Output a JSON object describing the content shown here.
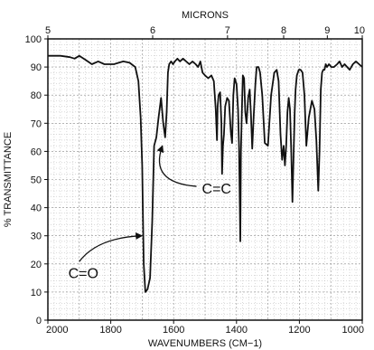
{
  "chart_data": {
    "type": "line",
    "title": "",
    "xlabel": "WAVENUMBERS (CM−1)",
    "ylabel": "% TRANSMITTANCE",
    "top_axis_label": "MICRONS",
    "xlim": [
      2000,
      1000
    ],
    "ylim": [
      0,
      100
    ],
    "grid": true,
    "x_ticks": [
      {
        "value": 2000,
        "label": "2000"
      },
      {
        "value": 1800,
        "label": "1800"
      },
      {
        "value": 1600,
        "label": "1600"
      },
      {
        "value": 1400,
        "label": "1400"
      },
      {
        "value": 1200,
        "label": "1200"
      },
      {
        "value": 1000,
        "label": "1000"
      }
    ],
    "y_ticks": [
      {
        "value": 0,
        "label": "0"
      },
      {
        "value": 10,
        "label": "10"
      },
      {
        "value": 20,
        "label": "20"
      },
      {
        "value": 30,
        "label": "30"
      },
      {
        "value": 40,
        "label": "40"
      },
      {
        "value": 50,
        "label": "50"
      },
      {
        "value": 60,
        "label": "60"
      },
      {
        "value": 70,
        "label": "70"
      },
      {
        "value": 80,
        "label": "80"
      },
      {
        "value": 90,
        "label": "90"
      },
      {
        "value": 100,
        "label": "100"
      }
    ],
    "micron_ticks": [
      {
        "value": 5,
        "label": "5"
      },
      {
        "value": 6,
        "label": "6"
      },
      {
        "value": 7,
        "label": "7"
      },
      {
        "value": 8,
        "label": "8"
      },
      {
        "value": 9,
        "label": "9"
      },
      {
        "value": 10,
        "label": "10"
      }
    ],
    "series": [
      {
        "x": [
          2000,
          1960,
          1930,
          1915,
          1900,
          1880,
          1860,
          1840,
          1820,
          1790,
          1760,
          1740,
          1722,
          1712,
          1705,
          1700,
          1698,
          1695,
          1690,
          1683,
          1675,
          1668,
          1662,
          1655,
          1648,
          1640,
          1633,
          1627,
          1622,
          1618,
          1614,
          1608,
          1602,
          1596,
          1588,
          1580,
          1570,
          1560,
          1550,
          1540,
          1530,
          1522,
          1515,
          1508,
          1500,
          1490,
          1480,
          1472,
          1466,
          1462,
          1460,
          1457,
          1452,
          1448,
          1446,
          1443,
          1440,
          1436,
          1430,
          1424,
          1418,
          1414,
          1410,
          1406,
          1400,
          1395,
          1392,
          1388,
          1386,
          1383,
          1380,
          1376,
          1372,
          1368,
          1363,
          1358,
          1354,
          1350,
          1345,
          1340,
          1336,
          1330,
          1325,
          1318,
          1310,
          1300,
          1290,
          1280,
          1272,
          1266,
          1260,
          1255,
          1250,
          1246,
          1242,
          1238,
          1234,
          1230,
          1226,
          1222,
          1218,
          1215,
          1212,
          1208,
          1202,
          1196,
          1190,
          1184,
          1178,
          1170,
          1160,
          1152,
          1146,
          1140,
          1136,
          1132,
          1128,
          1124,
          1120,
          1116,
          1112,
          1106,
          1098,
          1090,
          1080,
          1072,
          1064,
          1056,
          1048,
          1040,
          1030,
          1020,
          1010,
          1000
        ],
        "y": [
          94,
          94,
          93.5,
          93,
          94,
          92.5,
          91,
          92,
          91,
          91,
          92,
          91.5,
          90,
          85,
          72,
          55,
          40,
          20,
          10,
          11,
          15,
          35,
          62,
          65,
          72,
          79,
          70,
          65,
          74,
          88,
          91,
          92,
          91,
          92,
          93,
          92,
          93,
          92,
          91,
          92,
          91,
          90,
          92,
          88,
          87,
          86,
          87,
          85,
          75,
          64,
          76,
          80,
          81,
          70,
          52,
          62,
          66,
          76,
          79,
          78,
          67,
          63,
          80,
          86,
          84,
          75,
          62,
          28,
          60,
          74,
          87,
          86,
          74,
          70,
          79,
          82,
          73,
          61,
          73,
          84,
          90,
          90,
          88,
          80,
          63,
          62,
          80,
          88,
          89,
          85,
          66,
          57,
          62,
          55,
          62,
          74,
          79,
          75,
          60,
          42,
          60,
          74,
          82,
          87,
          89,
          89,
          88,
          80,
          62,
          72,
          78,
          75,
          64,
          46,
          60,
          82,
          88,
          89,
          89,
          91,
          90,
          91,
          90,
          90,
          91,
          92,
          90,
          91,
          90,
          89,
          91,
          92,
          91,
          90
        ]
      }
    ],
    "annotations": [
      {
        "text": "C=O",
        "x": 1935,
        "y": 15,
        "arrow_to": [
          1692,
          30
        ]
      },
      {
        "text": "C=C",
        "x": 1510,
        "y": 45,
        "arrow_to": [
          1627,
          62
        ]
      }
    ]
  }
}
